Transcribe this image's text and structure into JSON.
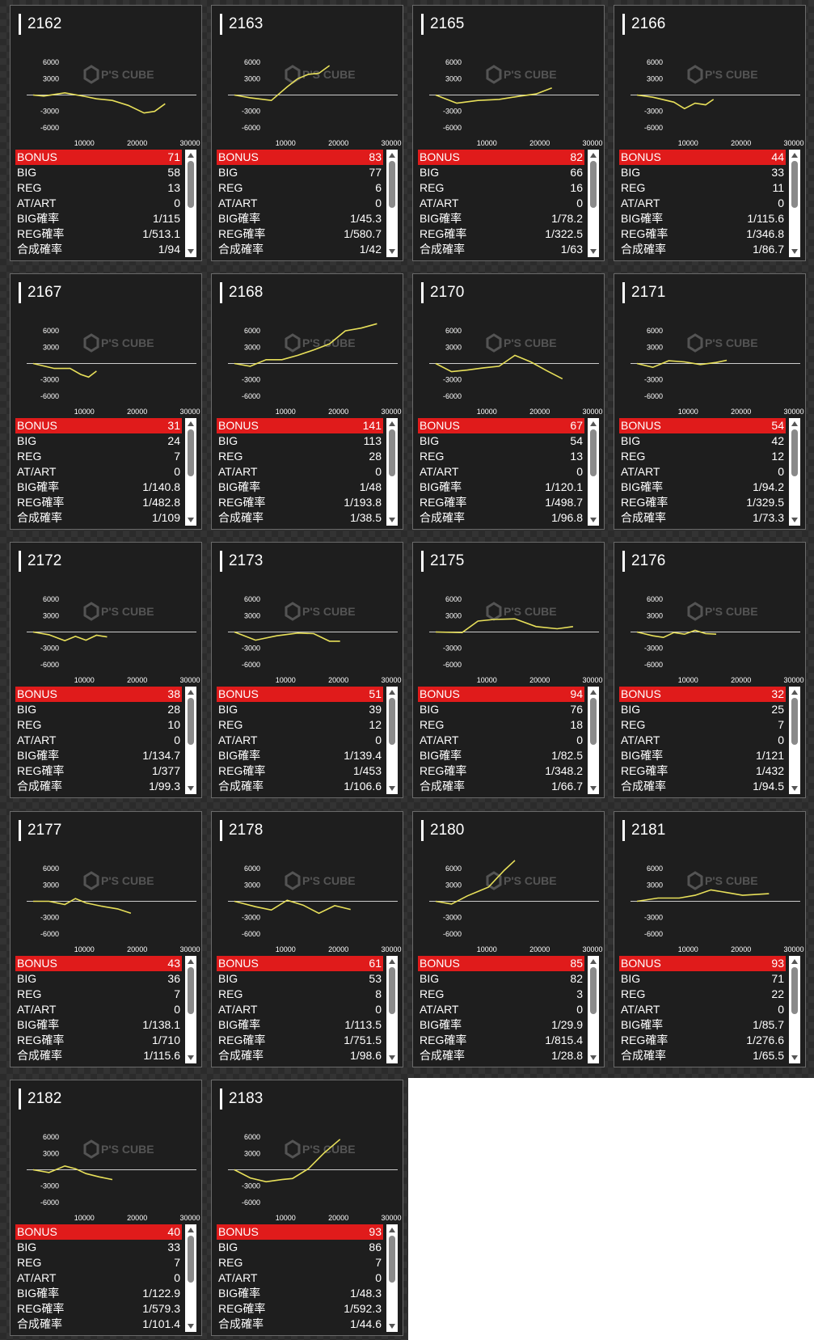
{
  "row_labels": {
    "bonus": "BONUS",
    "big": "BIG",
    "reg": "REG",
    "at_art": "AT/ART",
    "big_rate": "BIG確率",
    "reg_rate": "REG確率",
    "combined_rate": "合成確率"
  },
  "graph": {
    "y_ticks": [
      "6000",
      "3000",
      "-3000",
      "-6000"
    ],
    "x_ticks": [
      "10000",
      "20000",
      "30000"
    ],
    "watermark": "P'S CUBE",
    "line_color": "#e8e05a",
    "zero_line_color": "#cccccc"
  },
  "colors": {
    "bonus_row": "#e01b1b",
    "card_bg": "#1e1e1e",
    "text": "#ffffff"
  },
  "machines": [
    {
      "id": "2162",
      "bonus": "71",
      "big": "58",
      "reg": "13",
      "at_art": "0",
      "big_rate": "1/115",
      "reg_rate": "1/513.1",
      "combined_rate": "1/94",
      "chart_data": {
        "type": "line",
        "x": [
          0,
          2000,
          6000,
          10000,
          12000,
          15000,
          18000,
          21000,
          23000,
          25000
        ],
        "y": [
          0,
          -200,
          400,
          -300,
          -700,
          -1000,
          -1900,
          -3300,
          -3000,
          -1600
        ]
      }
    },
    {
      "id": "2163",
      "bonus": "83",
      "big": "77",
      "reg": "6",
      "at_art": "0",
      "big_rate": "1/45.3",
      "reg_rate": "1/580.7",
      "combined_rate": "1/42",
      "chart_data": {
        "type": "line",
        "x": [
          0,
          3000,
          7000,
          10000,
          12000,
          14000,
          16000,
          18000
        ],
        "y": [
          0,
          -500,
          -1000,
          1500,
          3000,
          3800,
          4000,
          5400
        ]
      }
    },
    {
      "id": "2165",
      "bonus": "82",
      "big": "66",
      "reg": "16",
      "at_art": "0",
      "big_rate": "1/78.2",
      "reg_rate": "1/322.5",
      "combined_rate": "1/63",
      "chart_data": {
        "type": "line",
        "x": [
          0,
          4000,
          8000,
          12000,
          16000,
          19000,
          22000
        ],
        "y": [
          0,
          -1500,
          -1000,
          -800,
          -200,
          200,
          1300
        ]
      }
    },
    {
      "id": "2166",
      "bonus": "44",
      "big": "33",
      "reg": "11",
      "at_art": "0",
      "big_rate": "1/115.6",
      "reg_rate": "1/346.8",
      "combined_rate": "1/86.7",
      "chart_data": {
        "type": "line",
        "x": [
          0,
          3000,
          7000,
          9000,
          11000,
          13000,
          14500
        ],
        "y": [
          0,
          -400,
          -1300,
          -2500,
          -1500,
          -1800,
          -800
        ]
      }
    },
    {
      "id": "2167",
      "bonus": "31",
      "big": "24",
      "reg": "7",
      "at_art": "0",
      "big_rate": "1/140.8",
      "reg_rate": "1/482.8",
      "combined_rate": "1/109",
      "chart_data": {
        "type": "line",
        "x": [
          0,
          4000,
          7000,
          9000,
          10500,
          12000
        ],
        "y": [
          0,
          -900,
          -900,
          -2000,
          -2500,
          -1400
        ]
      }
    },
    {
      "id": "2168",
      "bonus": "141",
      "big": "113",
      "reg": "28",
      "at_art": "0",
      "big_rate": "1/48",
      "reg_rate": "1/193.8",
      "combined_rate": "1/38.5",
      "chart_data": {
        "type": "line",
        "x": [
          0,
          3000,
          6000,
          9000,
          12000,
          15000,
          18000,
          21000,
          24000,
          27000
        ],
        "y": [
          0,
          -500,
          700,
          700,
          1500,
          2500,
          3600,
          6000,
          6500,
          7300
        ]
      }
    },
    {
      "id": "2170",
      "bonus": "67",
      "big": "54",
      "reg": "13",
      "at_art": "0",
      "big_rate": "1/120.1",
      "reg_rate": "1/498.7",
      "combined_rate": "1/96.8",
      "chart_data": {
        "type": "line",
        "x": [
          0,
          3000,
          6000,
          9000,
          12000,
          15000,
          18000,
          21000,
          24000
        ],
        "y": [
          0,
          -1500,
          -1200,
          -800,
          -500,
          1500,
          300,
          -1300,
          -2800
        ]
      }
    },
    {
      "id": "2171",
      "bonus": "54",
      "big": "42",
      "reg": "12",
      "at_art": "0",
      "big_rate": "1/94.2",
      "reg_rate": "1/329.5",
      "combined_rate": "1/73.3",
      "chart_data": {
        "type": "line",
        "x": [
          0,
          3000,
          6000,
          9000,
          12000,
          15000,
          17000
        ],
        "y": [
          0,
          -700,
          500,
          300,
          -200,
          200,
          600
        ]
      }
    },
    {
      "id": "2172",
      "bonus": "38",
      "big": "28",
      "reg": "10",
      "at_art": "0",
      "big_rate": "1/134.7",
      "reg_rate": "1/377",
      "combined_rate": "1/99.3",
      "chart_data": {
        "type": "line",
        "x": [
          0,
          3000,
          6000,
          8000,
          10000,
          12000,
          14000
        ],
        "y": [
          0,
          -500,
          -1600,
          -800,
          -1500,
          -600,
          -900
        ]
      }
    },
    {
      "id": "2173",
      "bonus": "51",
      "big": "39",
      "reg": "12",
      "at_art": "0",
      "big_rate": "1/139.4",
      "reg_rate": "1/453",
      "combined_rate": "1/106.6",
      "chart_data": {
        "type": "line",
        "x": [
          0,
          4000,
          8000,
          12000,
          15000,
          18000,
          20000
        ],
        "y": [
          0,
          -1500,
          -700,
          -200,
          -300,
          -1700,
          -1700
        ]
      }
    },
    {
      "id": "2175",
      "bonus": "94",
      "big": "76",
      "reg": "18",
      "at_art": "0",
      "big_rate": "1/82.5",
      "reg_rate": "1/348.2",
      "combined_rate": "1/66.7",
      "chart_data": {
        "type": "line",
        "x": [
          0,
          5000,
          8000,
          11000,
          15000,
          19000,
          23000,
          26000
        ],
        "y": [
          0,
          -100,
          2000,
          2300,
          2400,
          1000,
          600,
          1000
        ]
      }
    },
    {
      "id": "2176",
      "bonus": "32",
      "big": "25",
      "reg": "7",
      "at_art": "0",
      "big_rate": "1/121",
      "reg_rate": "1/432",
      "combined_rate": "1/94.5",
      "chart_data": {
        "type": "line",
        "x": [
          0,
          3000,
          5000,
          7000,
          9000,
          11000,
          13000,
          15000
        ],
        "y": [
          0,
          -700,
          -1000,
          -100,
          -400,
          300,
          -300,
          -400
        ]
      }
    },
    {
      "id": "2177",
      "bonus": "43",
      "big": "36",
      "reg": "7",
      "at_art": "0",
      "big_rate": "1/138.1",
      "reg_rate": "1/710",
      "combined_rate": "1/115.6",
      "chart_data": {
        "type": "line",
        "x": [
          0,
          3000,
          6000,
          8000,
          10000,
          13000,
          16000,
          18500
        ],
        "y": [
          0,
          0,
          -600,
          500,
          -300,
          -900,
          -1400,
          -2200
        ]
      }
    },
    {
      "id": "2178",
      "bonus": "61",
      "big": "53",
      "reg": "8",
      "at_art": "0",
      "big_rate": "1/113.5",
      "reg_rate": "1/751.5",
      "combined_rate": "1/98.6",
      "chart_data": {
        "type": "line",
        "x": [
          0,
          4000,
          7000,
          10000,
          13000,
          16000,
          19000,
          22000
        ],
        "y": [
          0,
          -1000,
          -1600,
          200,
          -700,
          -2200,
          -800,
          -1500
        ]
      }
    },
    {
      "id": "2180",
      "bonus": "85",
      "big": "82",
      "reg": "3",
      "at_art": "0",
      "big_rate": "1/29.9",
      "reg_rate": "1/815.4",
      "combined_rate": "1/28.8",
      "chart_data": {
        "type": "line",
        "x": [
          0,
          3000,
          6000,
          8000,
          10000,
          13000,
          15000
        ],
        "y": [
          0,
          -500,
          1000,
          1800,
          2600,
          5700,
          7500
        ]
      }
    },
    {
      "id": "2181",
      "bonus": "93",
      "big": "71",
      "reg": "22",
      "at_art": "0",
      "big_rate": "1/85.7",
      "reg_rate": "1/276.6",
      "combined_rate": "1/65.5",
      "chart_data": {
        "type": "line",
        "x": [
          0,
          4000,
          8000,
          11000,
          14000,
          17000,
          20000,
          25000
        ],
        "y": [
          0,
          600,
          600,
          1100,
          2100,
          1600,
          1100,
          1400
        ]
      }
    },
    {
      "id": "2182",
      "bonus": "40",
      "big": "33",
      "reg": "7",
      "at_art": "0",
      "big_rate": "1/122.9",
      "reg_rate": "1/579.3",
      "combined_rate": "1/101.4",
      "chart_data": {
        "type": "line",
        "x": [
          0,
          3000,
          6000,
          8000,
          10000,
          12500,
          15000
        ],
        "y": [
          0,
          -500,
          700,
          200,
          -700,
          -1300,
          -1800
        ]
      }
    },
    {
      "id": "2183",
      "bonus": "93",
      "big": "86",
      "reg": "7",
      "at_art": "0",
      "big_rate": "1/48.3",
      "reg_rate": "1/592.3",
      "combined_rate": "1/44.6",
      "chart_data": {
        "type": "line",
        "x": [
          0,
          3000,
          6000,
          9000,
          11000,
          14000,
          17000,
          20000
        ],
        "y": [
          0,
          -1500,
          -2200,
          -1800,
          -1600,
          200,
          3100,
          5600
        ]
      }
    }
  ]
}
